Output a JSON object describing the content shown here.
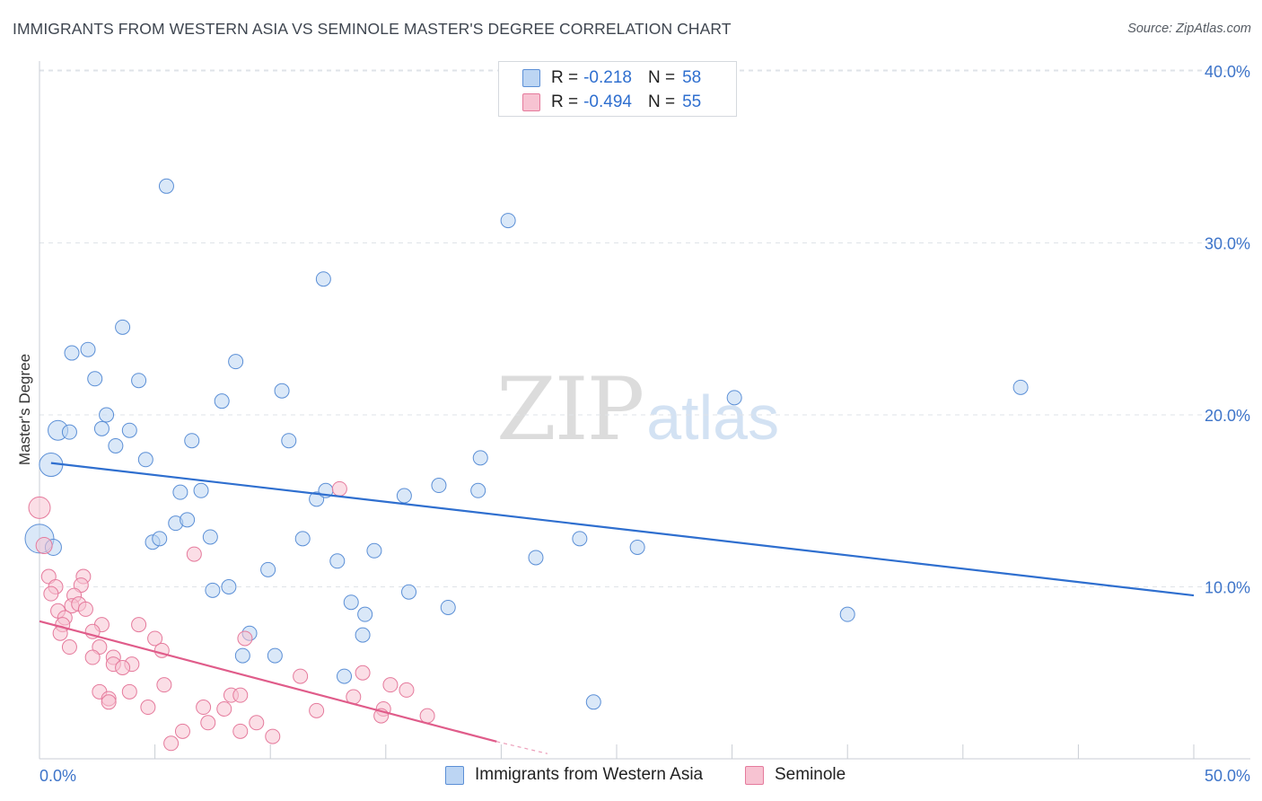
{
  "title": "IMMIGRANTS FROM WESTERN ASIA VS SEMINOLE MASTER'S DEGREE CORRELATION CHART",
  "source": "Source: ZipAtlas.com",
  "watermark": {
    "zip": "ZIP",
    "atlas": "atlas"
  },
  "legend": {
    "r_label": "R =",
    "n_label": "N =",
    "rows": [
      {
        "r": "-0.218",
        "n": "58"
      },
      {
        "r": "-0.494",
        "n": "55"
      }
    ]
  },
  "colors": {
    "blue_fill": "#bcd5f3",
    "blue_stroke": "#5b8fd6",
    "blue_line": "#2f6fcf",
    "pink_fill": "#f7c3d2",
    "pink_stroke": "#e57a9c",
    "pink_line": "#e05c8a",
    "grid": "#dfe3e8",
    "axis_text": "#3d74c9"
  },
  "chart_data": {
    "type": "scatter",
    "title": "IMMIGRANTS FROM WESTERN ASIA VS SEMINOLE MASTER'S DEGREE CORRELATION CHART",
    "xlabel": "",
    "ylabel": "Master's Degree",
    "xlim": [
      0,
      50
    ],
    "ylim": [
      0,
      42
    ],
    "x_tick_labels": [
      "0.0%",
      "50.0%"
    ],
    "y_ticks": [
      10,
      20,
      30,
      40
    ],
    "y_tick_labels": [
      "10.0%",
      "20.0%",
      "30.0%",
      "40.0%"
    ],
    "grid": true,
    "series": [
      {
        "name": "Immigrants from Western Asia",
        "color": "blue",
        "r": -0.218,
        "n": 58,
        "trend": {
          "x": [
            0.5,
            50
          ],
          "y": [
            17.2,
            9.5
          ]
        },
        "points": [
          [
            5.5,
            33.3
          ],
          [
            20.3,
            31.3
          ],
          [
            12.3,
            27.9
          ],
          [
            3.6,
            25.1
          ],
          [
            1.4,
            23.6
          ],
          [
            2.1,
            23.8
          ],
          [
            8.5,
            23.1
          ],
          [
            2.4,
            22.1
          ],
          [
            4.3,
            22.0
          ],
          [
            7.9,
            20.8
          ],
          [
            10.5,
            21.4
          ],
          [
            30.1,
            21.0
          ],
          [
            42.5,
            21.6
          ],
          [
            2.9,
            20.0
          ],
          [
            0.8,
            19.1
          ],
          [
            1.3,
            19.0
          ],
          [
            2.7,
            19.2
          ],
          [
            3.9,
            19.1
          ],
          [
            3.3,
            18.2
          ],
          [
            6.6,
            18.5
          ],
          [
            10.8,
            18.5
          ],
          [
            0.5,
            17.1
          ],
          [
            4.6,
            17.4
          ],
          [
            19.1,
            17.5
          ],
          [
            6.1,
            15.5
          ],
          [
            7.0,
            15.6
          ],
          [
            12.0,
            15.1
          ],
          [
            12.4,
            15.6
          ],
          [
            15.8,
            15.3
          ],
          [
            17.3,
            15.9
          ],
          [
            19.0,
            15.6
          ],
          [
            5.9,
            13.7
          ],
          [
            6.4,
            13.9
          ],
          [
            0.0,
            12.8
          ],
          [
            4.9,
            12.6
          ],
          [
            5.2,
            12.8
          ],
          [
            7.4,
            12.9
          ],
          [
            11.4,
            12.8
          ],
          [
            12.9,
            11.5
          ],
          [
            14.5,
            12.1
          ],
          [
            21.5,
            11.7
          ],
          [
            23.4,
            12.8
          ],
          [
            25.9,
            12.3
          ],
          [
            9.9,
            11.0
          ],
          [
            7.5,
            9.8
          ],
          [
            8.2,
            10.0
          ],
          [
            16.0,
            9.7
          ],
          [
            13.5,
            9.1
          ],
          [
            14.1,
            8.4
          ],
          [
            17.7,
            8.8
          ],
          [
            35.0,
            8.4
          ],
          [
            9.1,
            7.3
          ],
          [
            14.0,
            7.2
          ],
          [
            8.8,
            6.0
          ],
          [
            10.2,
            6.0
          ],
          [
            13.2,
            4.8
          ],
          [
            24.0,
            3.3
          ],
          [
            0.6,
            12.3
          ]
        ]
      },
      {
        "name": "Seminole",
        "color": "pink",
        "r": -0.494,
        "n": 55,
        "trend": {
          "x": [
            0.0,
            19.8
          ],
          "y": [
            8.0,
            1.0
          ]
        },
        "trend_dashed": {
          "x": [
            19.8,
            22.0
          ],
          "y": [
            1.0,
            0.3
          ]
        },
        "points": [
          [
            0.0,
            14.6
          ],
          [
            0.2,
            12.4
          ],
          [
            13.0,
            15.7
          ],
          [
            6.7,
            11.9
          ],
          [
            0.4,
            10.6
          ],
          [
            1.9,
            10.6
          ],
          [
            0.7,
            10.0
          ],
          [
            1.8,
            10.1
          ],
          [
            0.5,
            9.6
          ],
          [
            1.5,
            9.5
          ],
          [
            0.8,
            8.6
          ],
          [
            1.4,
            8.9
          ],
          [
            1.7,
            9.0
          ],
          [
            2.0,
            8.7
          ],
          [
            1.1,
            8.2
          ],
          [
            1.0,
            7.8
          ],
          [
            2.7,
            7.8
          ],
          [
            4.3,
            7.8
          ],
          [
            0.9,
            7.3
          ],
          [
            2.3,
            7.4
          ],
          [
            5.0,
            7.0
          ],
          [
            8.9,
            7.0
          ],
          [
            2.6,
            6.5
          ],
          [
            1.3,
            6.5
          ],
          [
            5.3,
            6.3
          ],
          [
            2.3,
            5.9
          ],
          [
            3.2,
            5.9
          ],
          [
            3.2,
            5.5
          ],
          [
            4.0,
            5.5
          ],
          [
            3.6,
            5.3
          ],
          [
            11.3,
            4.8
          ],
          [
            14.0,
            5.0
          ],
          [
            5.4,
            4.3
          ],
          [
            15.2,
            4.3
          ],
          [
            15.9,
            4.0
          ],
          [
            2.6,
            3.9
          ],
          [
            3.9,
            3.9
          ],
          [
            8.3,
            3.7
          ],
          [
            8.7,
            3.7
          ],
          [
            13.6,
            3.6
          ],
          [
            3.0,
            3.5
          ],
          [
            3.0,
            3.3
          ],
          [
            4.7,
            3.0
          ],
          [
            7.1,
            3.0
          ],
          [
            8.0,
            2.9
          ],
          [
            12.0,
            2.8
          ],
          [
            14.9,
            2.9
          ],
          [
            14.8,
            2.5
          ],
          [
            16.8,
            2.5
          ],
          [
            7.3,
            2.1
          ],
          [
            9.4,
            2.1
          ],
          [
            8.7,
            1.6
          ],
          [
            6.2,
            1.6
          ],
          [
            10.1,
            1.3
          ],
          [
            5.7,
            0.9
          ]
        ]
      }
    ]
  },
  "bottom_legend": {
    "items": [
      {
        "label": "Immigrants from Western Asia"
      },
      {
        "label": "Seminole"
      }
    ]
  }
}
